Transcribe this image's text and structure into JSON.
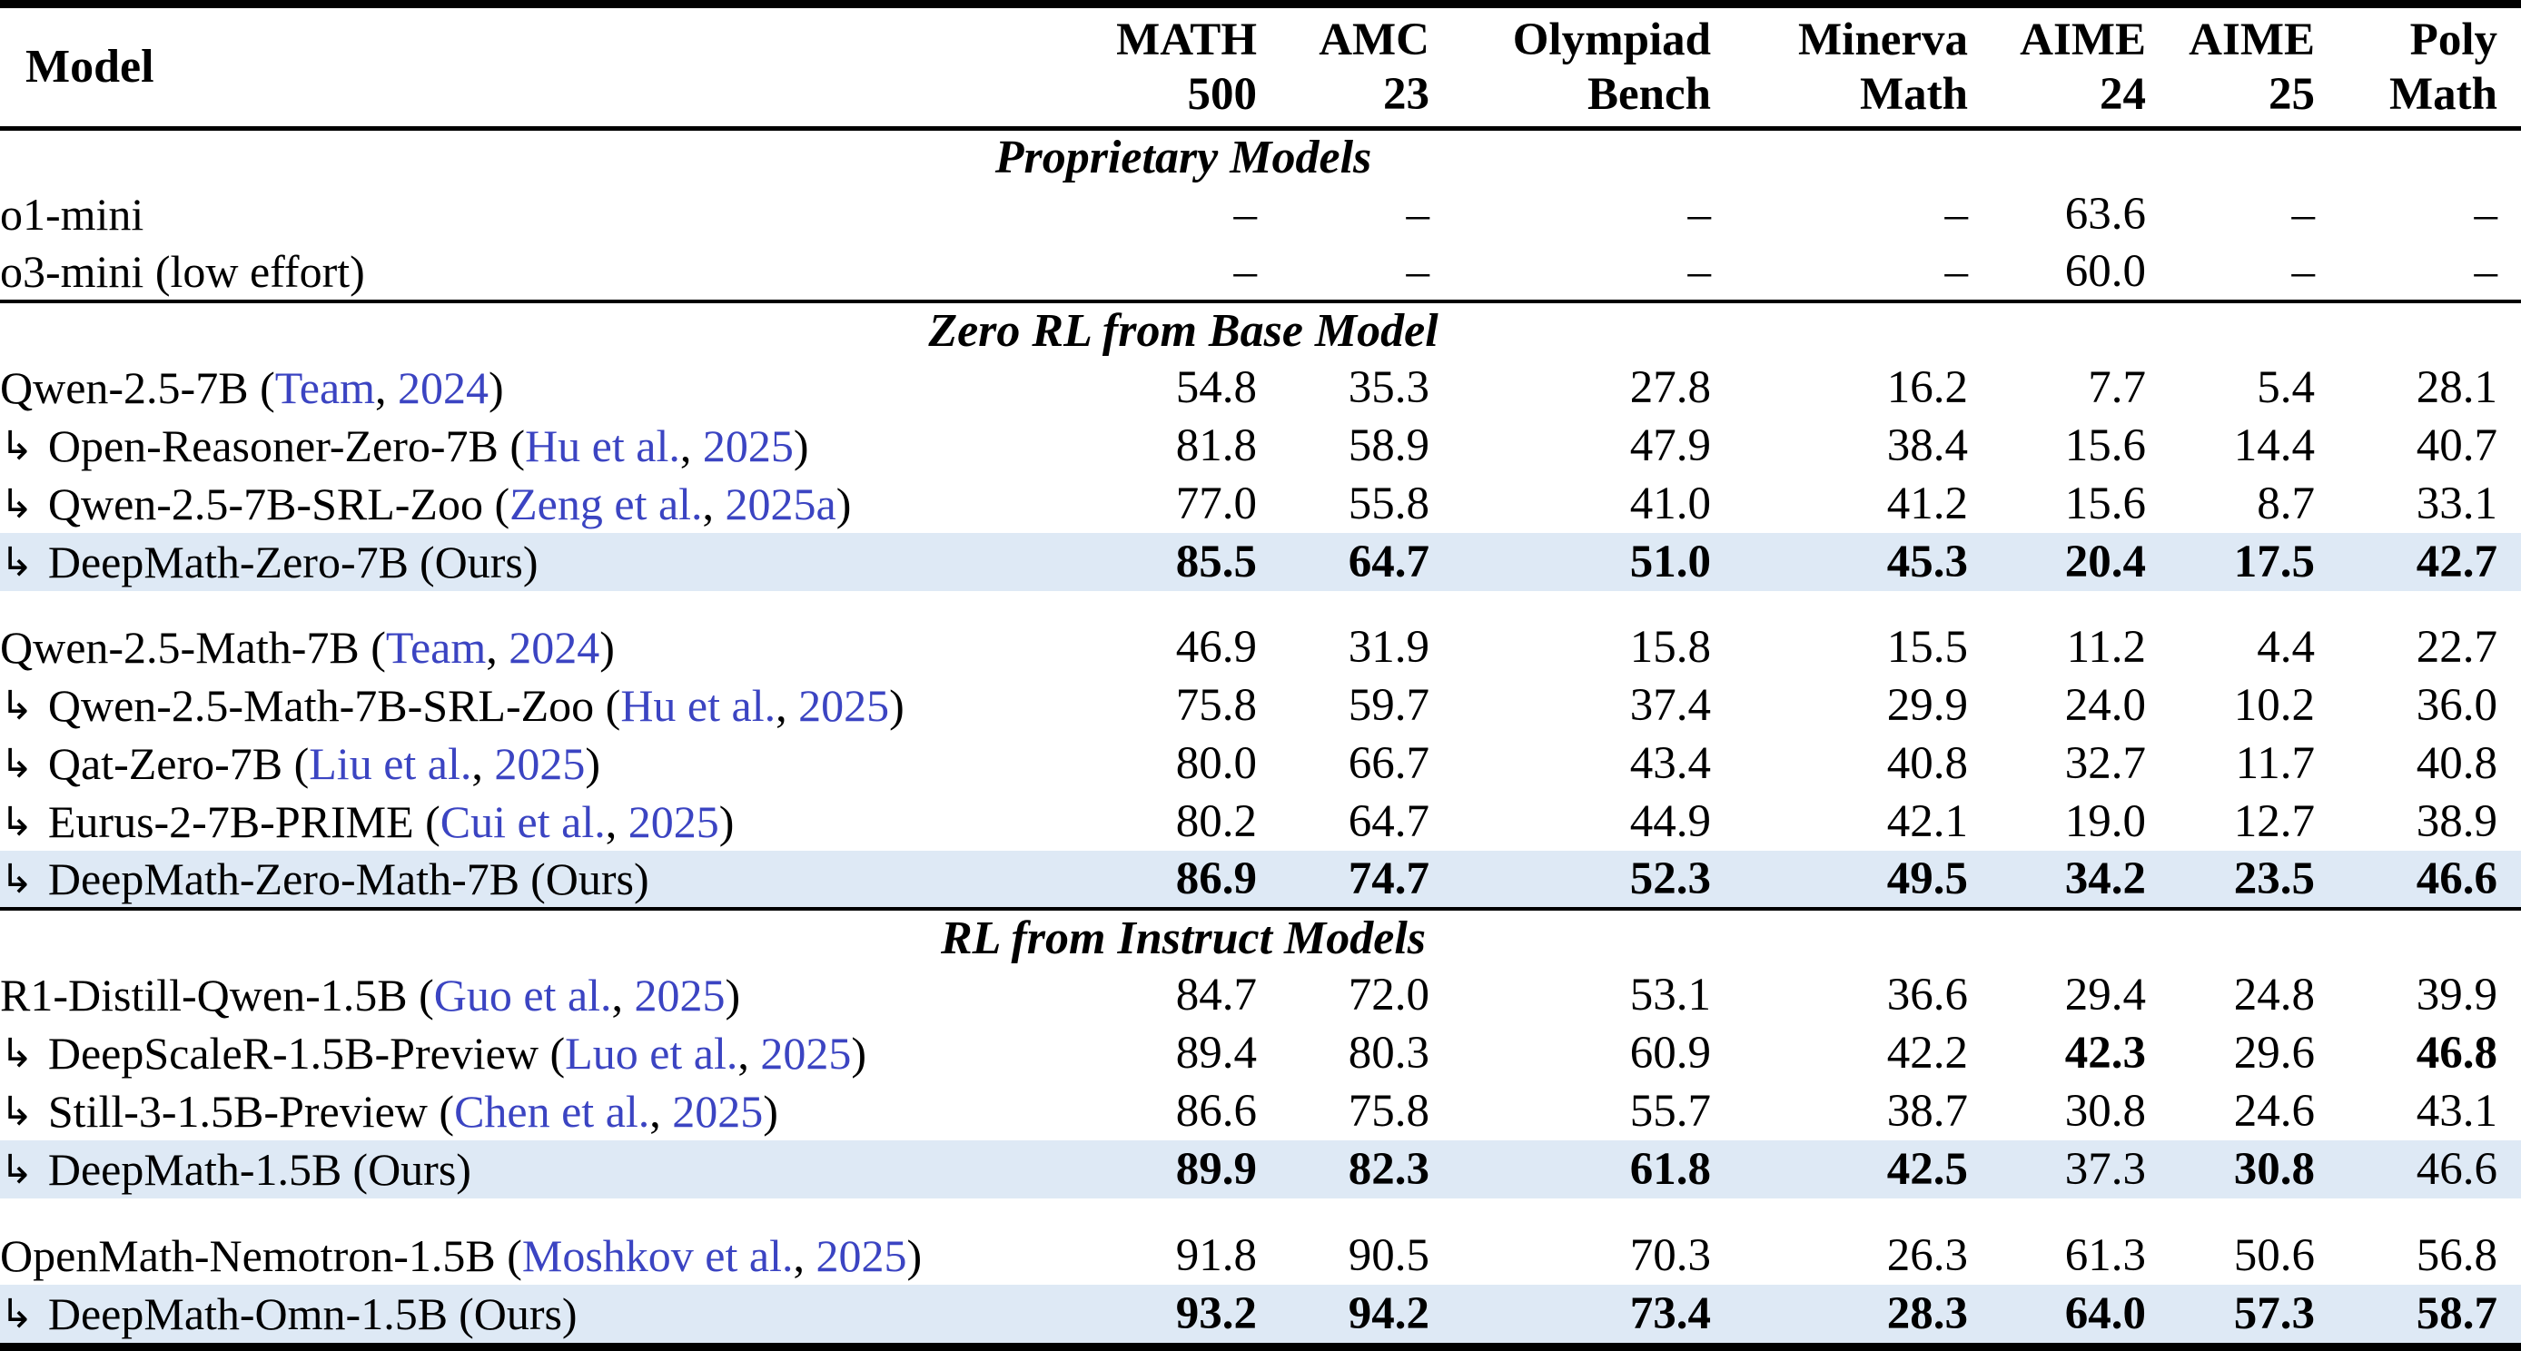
{
  "table": {
    "header": {
      "model": "Model",
      "cols": [
        {
          "line1": "MATH",
          "line2": "500"
        },
        {
          "line1": "AMC",
          "line2": "23"
        },
        {
          "line1": "Olympiad",
          "line2": "Bench"
        },
        {
          "line1": "Minerva",
          "line2": "Math"
        },
        {
          "line1": "AIME",
          "line2": "24"
        },
        {
          "line1": "AIME",
          "line2": "25"
        },
        {
          "line1": "Poly",
          "line2": "Math"
        }
      ]
    },
    "glyphs": {
      "arrow": "↳",
      "open_paren": " (",
      "comma": ", ",
      "close_paren": ")"
    },
    "ours_label": "(Ours)",
    "colors": {
      "highlight_row": "#dee9f5",
      "citation_link": "#3b44c2",
      "rule": "#000000"
    },
    "sections": [
      {
        "title": "Proprietary Models",
        "ruled": false,
        "groups": [
          {
            "rows": [
              {
                "indent": false,
                "name": "o1-mini",
                "cite": null,
                "ours": false,
                "highlight": false,
                "values": [
                  "–",
                  "–",
                  "–",
                  "–",
                  "63.6",
                  "–",
                  "–"
                ],
                "bold_cols": []
              },
              {
                "indent": false,
                "name": "o3-mini (low effort)",
                "cite": null,
                "ours": false,
                "highlight": false,
                "values": [
                  "–",
                  "–",
                  "–",
                  "–",
                  "60.0",
                  "–",
                  "–"
                ],
                "bold_cols": []
              }
            ]
          }
        ]
      },
      {
        "title": "Zero RL from Base Model",
        "ruled": true,
        "groups": [
          {
            "rows": [
              {
                "indent": false,
                "name": "Qwen-2.5-7B",
                "cite": {
                  "author": "Team",
                  "year": "2024"
                },
                "ours": false,
                "highlight": false,
                "values": [
                  "54.8",
                  "35.3",
                  "27.8",
                  "16.2",
                  "7.7",
                  "5.4",
                  "28.1"
                ],
                "bold_cols": []
              },
              {
                "indent": true,
                "name": "Open-Reasoner-Zero-7B",
                "cite": {
                  "author": "Hu et al.",
                  "year": "2025"
                },
                "ours": false,
                "highlight": false,
                "values": [
                  "81.8",
                  "58.9",
                  "47.9",
                  "38.4",
                  "15.6",
                  "14.4",
                  "40.7"
                ],
                "bold_cols": []
              },
              {
                "indent": true,
                "name": "Qwen-2.5-7B-SRL-Zoo",
                "cite": {
                  "author": "Zeng et al.",
                  "year": "2025a"
                },
                "ours": false,
                "highlight": false,
                "values": [
                  "77.0",
                  "55.8",
                  "41.0",
                  "41.2",
                  "15.6",
                  "8.7",
                  "33.1"
                ],
                "bold_cols": []
              },
              {
                "indent": true,
                "name": "DeepMath-Zero-7B",
                "cite": null,
                "ours": true,
                "highlight": true,
                "values": [
                  "85.5",
                  "64.7",
                  "51.0",
                  "45.3",
                  "20.4",
                  "17.5",
                  "42.7"
                ],
                "bold_cols": [
                  0,
                  1,
                  2,
                  3,
                  4,
                  5,
                  6
                ]
              }
            ]
          },
          {
            "rows": [
              {
                "indent": false,
                "name": "Qwen-2.5-Math-7B",
                "cite": {
                  "author": "Team",
                  "year": "2024"
                },
                "ours": false,
                "highlight": false,
                "values": [
                  "46.9",
                  "31.9",
                  "15.8",
                  "15.5",
                  "11.2",
                  "4.4",
                  "22.7"
                ],
                "bold_cols": []
              },
              {
                "indent": true,
                "name": "Qwen-2.5-Math-7B-SRL-Zoo",
                "cite": {
                  "author": "Hu et al.",
                  "year": "2025"
                },
                "ours": false,
                "highlight": false,
                "values": [
                  "75.8",
                  "59.7",
                  "37.4",
                  "29.9",
                  "24.0",
                  "10.2",
                  "36.0"
                ],
                "bold_cols": []
              },
              {
                "indent": true,
                "name": "Qat-Zero-7B",
                "cite": {
                  "author": "Liu et al.",
                  "year": "2025"
                },
                "ours": false,
                "highlight": false,
                "values": [
                  "80.0",
                  "66.7",
                  "43.4",
                  "40.8",
                  "32.7",
                  "11.7",
                  "40.8"
                ],
                "bold_cols": []
              },
              {
                "indent": true,
                "name": "Eurus-2-7B-PRIME",
                "cite": {
                  "author": "Cui et al.",
                  "year": "2025"
                },
                "ours": false,
                "highlight": false,
                "values": [
                  "80.2",
                  "64.7",
                  "44.9",
                  "42.1",
                  "19.0",
                  "12.7",
                  "38.9"
                ],
                "bold_cols": []
              },
              {
                "indent": true,
                "name": "DeepMath-Zero-Math-7B",
                "cite": null,
                "ours": true,
                "highlight": true,
                "values": [
                  "86.9",
                  "74.7",
                  "52.3",
                  "49.5",
                  "34.2",
                  "23.5",
                  "46.6"
                ],
                "bold_cols": [
                  0,
                  1,
                  2,
                  3,
                  4,
                  5,
                  6
                ]
              }
            ]
          }
        ]
      },
      {
        "title": "RL from Instruct Models",
        "ruled": true,
        "groups": [
          {
            "rows": [
              {
                "indent": false,
                "name": "R1-Distill-Qwen-1.5B",
                "cite": {
                  "author": "Guo et al.",
                  "year": "2025"
                },
                "ours": false,
                "highlight": false,
                "values": [
                  "84.7",
                  "72.0",
                  "53.1",
                  "36.6",
                  "29.4",
                  "24.8",
                  "39.9"
                ],
                "bold_cols": []
              },
              {
                "indent": true,
                "name": "DeepScaleR-1.5B-Preview",
                "cite": {
                  "author": "Luo et al.",
                  "year": "2025"
                },
                "ours": false,
                "highlight": false,
                "values": [
                  "89.4",
                  "80.3",
                  "60.9",
                  "42.2",
                  "42.3",
                  "29.6",
                  "46.8"
                ],
                "bold_cols": [
                  4,
                  6
                ]
              },
              {
                "indent": true,
                "name": "Still-3-1.5B-Preview",
                "cite": {
                  "author": "Chen et al.",
                  "year": "2025"
                },
                "ours": false,
                "highlight": false,
                "values": [
                  "86.6",
                  "75.8",
                  "55.7",
                  "38.7",
                  "30.8",
                  "24.6",
                  "43.1"
                ],
                "bold_cols": []
              },
              {
                "indent": true,
                "name": "DeepMath-1.5B",
                "cite": null,
                "ours": true,
                "highlight": true,
                "values": [
                  "89.9",
                  "82.3",
                  "61.8",
                  "42.5",
                  "37.3",
                  "30.8",
                  "46.6"
                ],
                "bold_cols": [
                  0,
                  1,
                  2,
                  3,
                  5
                ]
              }
            ]
          },
          {
            "rows": [
              {
                "indent": false,
                "name": "OpenMath-Nemotron-1.5B",
                "cite": {
                  "author": "Moshkov et al.",
                  "year": "2025"
                },
                "ours": false,
                "highlight": false,
                "values": [
                  "91.8",
                  "90.5",
                  "70.3",
                  "26.3",
                  "61.3",
                  "50.6",
                  "56.8"
                ],
                "bold_cols": []
              },
              {
                "indent": true,
                "name": "DeepMath-Omn-1.5B",
                "cite": null,
                "ours": true,
                "highlight": true,
                "values": [
                  "93.2",
                  "94.2",
                  "73.4",
                  "28.3",
                  "64.0",
                  "57.3",
                  "58.7"
                ],
                "bold_cols": [
                  0,
                  1,
                  2,
                  3,
                  4,
                  5,
                  6
                ]
              }
            ]
          }
        ]
      }
    ]
  }
}
